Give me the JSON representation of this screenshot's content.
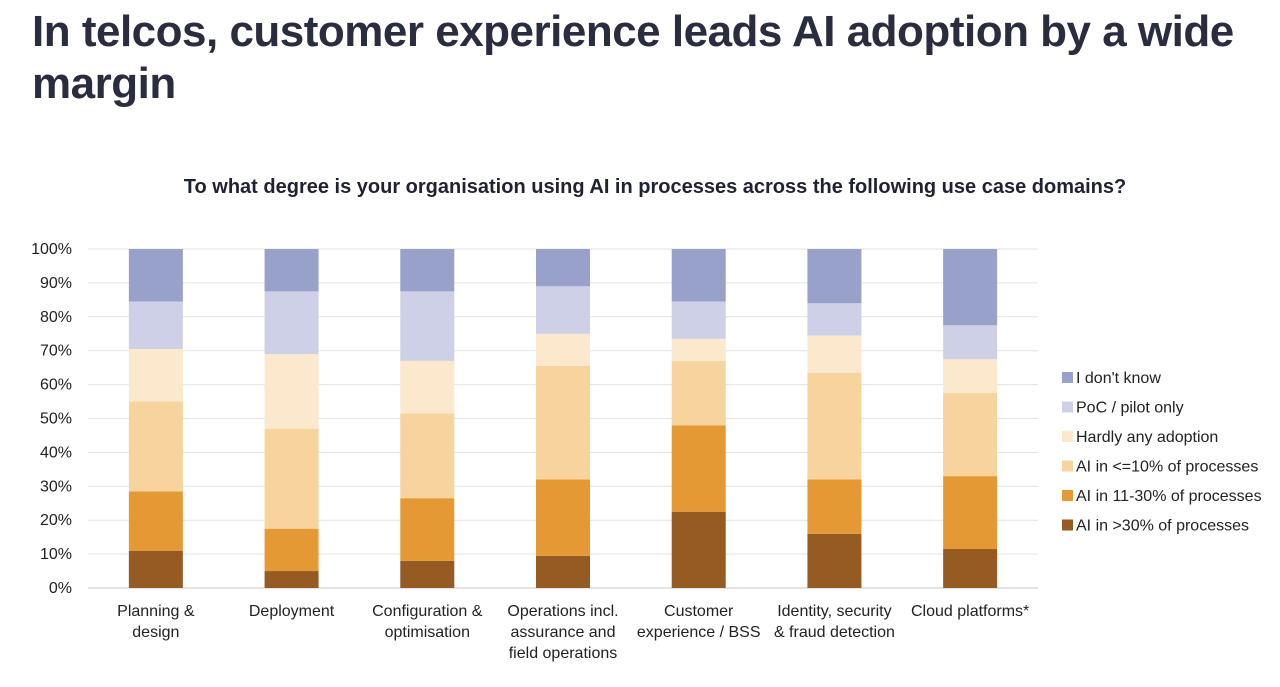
{
  "slide": {
    "title": "In telcos, customer experience leads AI adoption by a wide margin"
  },
  "chart_data": {
    "type": "bar",
    "stacked": true,
    "title": "To what degree is your organisation using AI in processes across the following use case domains?",
    "xlabel": "",
    "ylabel": "",
    "ylim": [
      0,
      100
    ],
    "yticks": [
      "0%",
      "10%",
      "20%",
      "30%",
      "40%",
      "50%",
      "60%",
      "70%",
      "80%",
      "90%",
      "100%"
    ],
    "grid": true,
    "legend_position": "right",
    "categories": [
      [
        "Planning &",
        "design"
      ],
      [
        "Deployment"
      ],
      [
        "Configuration &",
        "optimisation"
      ],
      [
        "Operations incl.",
        "assurance and",
        "field operations"
      ],
      [
        "Customer",
        "experience / BSS"
      ],
      [
        "Identity, security",
        "& fraud detection"
      ],
      [
        "Cloud platforms*"
      ]
    ],
    "series": [
      {
        "name": "AI in >30% of processes",
        "color": "#955b22",
        "values": [
          11,
          5,
          8,
          9.5,
          22.5,
          16,
          11.5
        ]
      },
      {
        "name": "AI in 11-30% of processes",
        "color": "#e59934",
        "values": [
          17.5,
          12.5,
          18.5,
          22.5,
          25.5,
          16,
          21.5
        ]
      },
      {
        "name": "AI in <=10% of processes",
        "color": "#f7d49d",
        "values": [
          26.5,
          29.5,
          25,
          33.5,
          19,
          31.5,
          24.5
        ]
      },
      {
        "name": "Hardly any adoption",
        "color": "#fbe8cd",
        "values": [
          15.5,
          22,
          15.5,
          9.5,
          6.5,
          11,
          10
        ]
      },
      {
        "name": "PoC / pilot only",
        "color": "#cdd0e6",
        "values": [
          14,
          18.5,
          20.5,
          14,
          11,
          9.5,
          10
        ]
      },
      {
        "name": "I don't know",
        "color": "#97a1ca",
        "values": [
          15.5,
          12.5,
          12.5,
          11,
          15.5,
          16,
          22.5
        ]
      }
    ]
  }
}
